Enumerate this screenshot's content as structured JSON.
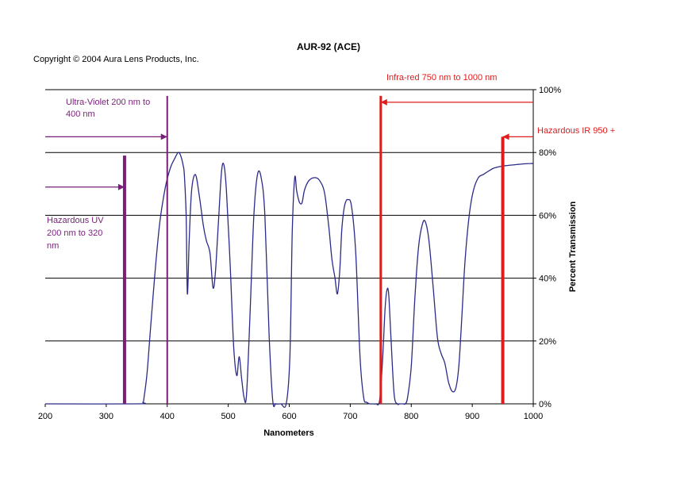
{
  "copyright": "Copyright © 2004 Aura Lens Products, Inc.",
  "chart_data": {
    "type": "line",
    "title": "AUR-92 (ACE)",
    "xlabel": "Nanometers",
    "ylabel": "Percent Transmission",
    "xlim": [
      200,
      1000
    ],
    "ylim": [
      0,
      100
    ],
    "x_ticks": [
      "200",
      "300",
      "400",
      "500",
      "600",
      "700",
      "800",
      "900",
      "1000"
    ],
    "y_ticks": [
      "0%",
      "20%",
      "40%",
      "60%",
      "80%",
      "100%"
    ],
    "y_axis_side": "right",
    "grid": "horizontal",
    "series": [
      {
        "color": "#2b2b88",
        "x": [
          200,
          350,
          360,
          362,
          367,
          373,
          380,
          388,
          397,
          405,
          412,
          418,
          422,
          426,
          428,
          431,
          433,
          436,
          440,
          446,
          452,
          459,
          464,
          470,
          475,
          479,
          484,
          489,
          493,
          497,
          503,
          509,
          514,
          518,
          522,
          526,
          530,
          536,
          542,
          548,
          554,
          560,
          567,
          573,
          578,
          586,
          595,
          601,
          605,
          609,
          612,
          614,
          617,
          621,
          625,
          632,
          642,
          650,
          658,
          665,
          670,
          675,
          679,
          683,
          686,
          689,
          692,
          696,
          702,
          709,
          716,
          722,
          727,
          732,
          737,
          742,
          748,
          753,
          757,
          760,
          763,
          767,
          772,
          777,
          781,
          784,
          787,
          790,
          794,
          800,
          806,
          812,
          818,
          823,
          829,
          836,
          843,
          849,
          855,
          861,
          867,
          873,
          878,
          883,
          888,
          895,
          902,
          910,
          918,
          926,
          935,
          945,
          955,
          965,
          975,
          985,
          995,
          1000
        ],
        "y": [
          0,
          0,
          0.5,
          2,
          10,
          25,
          42,
          58,
          69,
          75,
          78,
          80,
          79,
          76,
          73,
          60,
          35,
          52,
          68,
          73,
          67,
          57,
          52,
          48,
          37,
          42,
          58,
          74,
          76,
          68,
          45,
          18,
          9,
          15,
          8,
          2,
          3,
          30,
          60,
          73,
          72,
          60,
          22,
          1,
          0,
          0,
          0,
          15,
          55,
          72,
          68,
          66,
          64,
          64,
          68,
          71,
          72,
          71,
          67,
          56,
          46,
          40,
          35,
          43,
          55,
          61,
          64,
          65,
          63,
          48,
          15,
          2,
          0.5,
          0,
          0,
          0,
          1,
          14,
          30,
          36,
          35,
          20,
          3,
          0,
          0,
          0,
          0,
          0,
          2,
          12,
          34,
          50,
          57,
          58,
          52,
          37,
          21,
          16,
          13,
          7,
          4,
          5,
          12,
          28,
          45,
          60,
          68,
          72,
          73,
          74,
          75,
          75.5,
          75.8,
          76,
          76.2,
          76.4,
          76.5,
          76.5
        ]
      }
    ],
    "annotations": [
      {
        "text_lines": [
          "Ultra-Violet 200 nm to",
          "400 nm"
        ],
        "color": "#7a1e7a",
        "arrow_to_x": 400,
        "arrow_y": 85,
        "line_x": 400,
        "line_top": 98
      },
      {
        "text_lines": [
          "Hazardous UV",
          "200 nm to 320",
          "nm"
        ],
        "color": "#7a1e7a",
        "arrow_to_x": 330,
        "arrow_y": 69,
        "line_x": 330,
        "line_top": 79
      },
      {
        "text_lines": [
          "Infra-red 750 nm to 1000 nm"
        ],
        "color": "#e01b1b",
        "arrow_to_x": 750,
        "arrow_y": 96,
        "line_x": 750,
        "line_top": 98
      },
      {
        "text_lines": [
          "Hazardous IR 950 +"
        ],
        "color": "#e01b1b",
        "arrow_to_x": 950,
        "arrow_y": 85,
        "line_x": 950,
        "line_top": 85
      }
    ]
  }
}
